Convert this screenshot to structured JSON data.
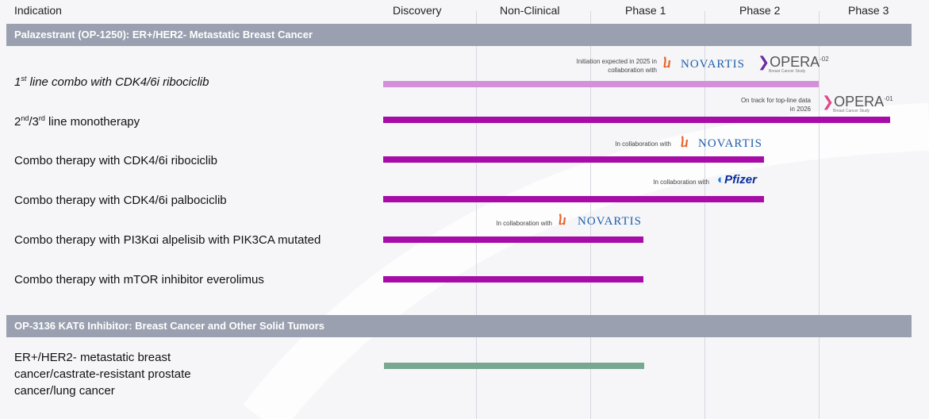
{
  "header": {
    "columns": [
      "Indication",
      "Discovery",
      "Non-Clinical",
      "Phase 1",
      "Phase 2",
      "Phase 3"
    ]
  },
  "colors": {
    "section": "#9aa0b0",
    "bar": "#a80ca8",
    "bar_light": "#d490d8",
    "bar_green": "#78a890"
  },
  "sections": [
    {
      "title": "Palazestrant (OP-1250): ER+/HER2- Metastatic Breast Cancer",
      "rows": [
        {
          "label_parts": [
            "1",
            "st",
            " line combo with CDK4/6i ribociclib"
          ],
          "note": "Initiation expected in 2025 in collaboration with",
          "partner": "NOVARTIS",
          "study": "OPERA",
          "study_sup": "-02",
          "study_sub": "Breast Cancer Study",
          "progress_phase": "Phase 2 (complete)"
        },
        {
          "label_parts": [
            "2",
            "nd",
            "/3",
            "rd",
            " line monotherapy"
          ],
          "note": "On track for top-line data in 2026",
          "study": "OPERA",
          "study_sup": "-01",
          "study_sub": "Breast Cancer Study",
          "progress_phase": "Phase 3"
        },
        {
          "label": "Combo therapy with CDK4/6i ribociclib",
          "note": "In collaboration with",
          "partner": "NOVARTIS",
          "progress_phase": "Phase 2"
        },
        {
          "label": "Combo therapy with CDK4/6i palbociclib",
          "note": "In collaboration with",
          "partner": "Pfizer",
          "progress_phase": "Phase 2"
        },
        {
          "label": "Combo therapy with PI3Kαi alpelisib with PIK3CA mutated",
          "note": "In collaboration with",
          "partner": "NOVARTIS",
          "progress_phase": "Phase 1"
        },
        {
          "label": "Combo therapy with mTOR inhibitor everolimus",
          "progress_phase": "Phase 1"
        }
      ]
    },
    {
      "title": "OP-3136 KAT6 Inhibitor: Breast Cancer and Other Solid Tumors",
      "rows": [
        {
          "label_lines": [
            "ER+/HER2- metastatic breast",
            "cancer/castrate-resistant prostate",
            "cancer/lung cancer"
          ],
          "progress_phase": "Phase 1"
        }
      ]
    }
  ]
}
